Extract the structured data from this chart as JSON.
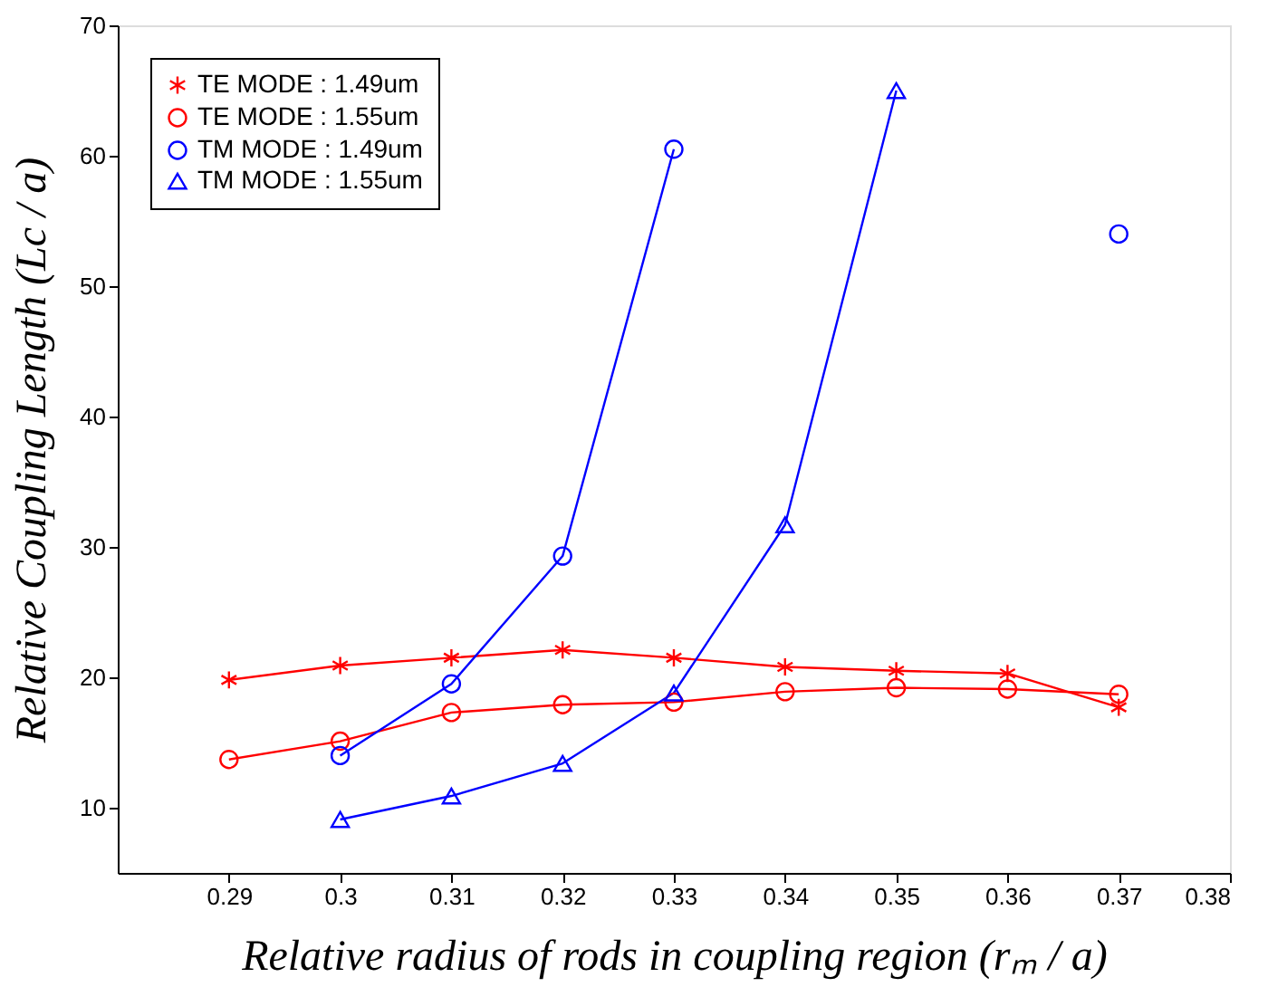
{
  "chart_data": {
    "type": "line",
    "xlabel": "Relative radius of rods in coupling region (rₘ / a)",
    "ylabel": "Relative Coupling Length (Lc / a)",
    "x": [
      0.29,
      0.3,
      0.31,
      0.32,
      0.33,
      0.34,
      0.35,
      0.36,
      0.37
    ],
    "xlim": [
      0.28,
      0.38
    ],
    "xticks": [
      {
        "value": 0.29,
        "label": "0.29"
      },
      {
        "value": 0.3,
        "label": "0.3"
      },
      {
        "value": 0.31,
        "label": "0.31"
      },
      {
        "value": 0.32,
        "label": "0.32"
      },
      {
        "value": 0.33,
        "label": "0.33"
      },
      {
        "value": 0.34,
        "label": "0.34"
      },
      {
        "value": 0.35,
        "label": "0.35"
      },
      {
        "value": 0.36,
        "label": "0.36"
      },
      {
        "value": 0.37,
        "label": "0.37"
      },
      {
        "value": 0.38,
        "label": "0.38"
      }
    ],
    "ylim": [
      5,
      70
    ],
    "yticks": [
      10,
      20,
      30,
      40,
      50,
      60,
      70
    ],
    "grid": false,
    "legend": "top left",
    "series": [
      {
        "name": "TE MODE : 1.49um",
        "color": "#ff0000",
        "marker": "cross",
        "values": [
          19.8,
          20.9,
          21.5,
          22.1,
          21.5,
          20.8,
          20.5,
          20.3,
          17.7
        ]
      },
      {
        "name": "TE MODE : 1.55um",
        "color": "#ff0000",
        "marker": "circle",
        "values": [
          13.7,
          15.1,
          17.3,
          17.9,
          18.1,
          18.9,
          19.2,
          19.1,
          18.7
        ]
      },
      {
        "name": "TM MODE : 1.49um",
        "color": "#0000ff",
        "marker": "circle",
        "values": [
          null,
          14.0,
          19.5,
          29.3,
          60.5,
          null,
          null,
          null,
          54.0
        ]
      },
      {
        "name": "TM MODE : 1.55um",
        "color": "#0000ff",
        "marker": "triangle",
        "values": [
          null,
          9.1,
          10.9,
          13.4,
          18.8,
          31.7,
          65.0,
          null,
          null
        ]
      }
    ]
  }
}
